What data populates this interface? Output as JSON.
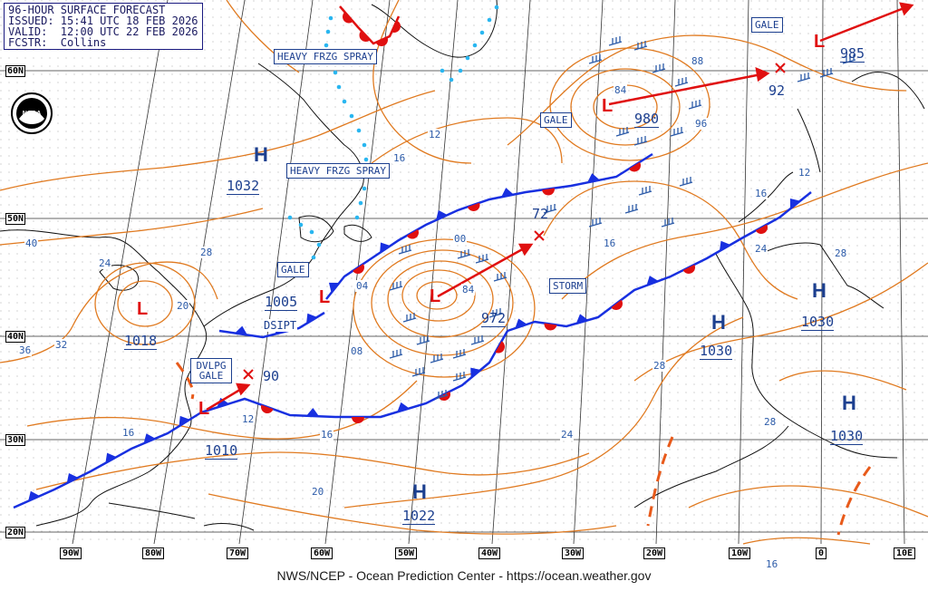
{
  "header": {
    "line1": "96-HOUR SURFACE FORECAST",
    "line2": "ISSUED: 15:41 UTC 18 FEB 2026",
    "line3": "VALID:  12:00 UTC 22 FEB 2026",
    "line4": "FCSTR:  Collins"
  },
  "footer": "NWS/NCEP - Ocean Prediction Center - https://ocean.weather.gov",
  "logo_text": "NOAA",
  "colors": {
    "isobar": "#e07a20",
    "cold_front": "#1830e0",
    "warm_front": "#e01010",
    "low": "#e01010",
    "high": "#1c3f8f",
    "label": "#1c3f8f",
    "ice": "#29b6f0",
    "occluded": "#8a2be2"
  },
  "latitudes": [
    "60N",
    "50N",
    "40N",
    "30N",
    "20N"
  ],
  "longitudes": [
    "90W",
    "80W",
    "70W",
    "60W",
    "50W",
    "40W",
    "30W",
    "20W",
    "10W",
    "0",
    "10E"
  ],
  "highs": [
    {
      "symbol": "H",
      "pressure": "1032"
    },
    {
      "symbol": "H",
      "pressure": "1030"
    },
    {
      "symbol": "H",
      "pressure": "1030"
    },
    {
      "symbol": "H",
      "pressure": "1030"
    },
    {
      "symbol": "H",
      "pressure": "1022"
    }
  ],
  "lows": [
    {
      "symbol": "L",
      "pressure": "1018"
    },
    {
      "symbol": "L",
      "pressure": "1005"
    },
    {
      "symbol": "L",
      "pressure": "1010"
    },
    {
      "symbol": "L",
      "pressure": "972"
    },
    {
      "symbol": "L",
      "pressure": "980"
    },
    {
      "symbol": "L",
      "pressure": "985"
    }
  ],
  "forecast_positions": [
    "90",
    "72",
    "92",
    "88"
  ],
  "warning_boxes": [
    "HEAVY FRZG SPRAY",
    "HEAVY FRZG SPRAY",
    "GALE",
    "GALE",
    "GALE",
    "STORM",
    "DSIPT",
    "DVLPG GALE"
  ],
  "isobar_labels": [
    "40",
    "36",
    "32",
    "28",
    "24",
    "20",
    "16",
    "12",
    "08",
    "04",
    "00",
    "84",
    "84",
    "96",
    "16",
    "24",
    "28",
    "28",
    "24",
    "28",
    "16",
    "12",
    "16",
    "20",
    "16",
    "12",
    "16"
  ]
}
